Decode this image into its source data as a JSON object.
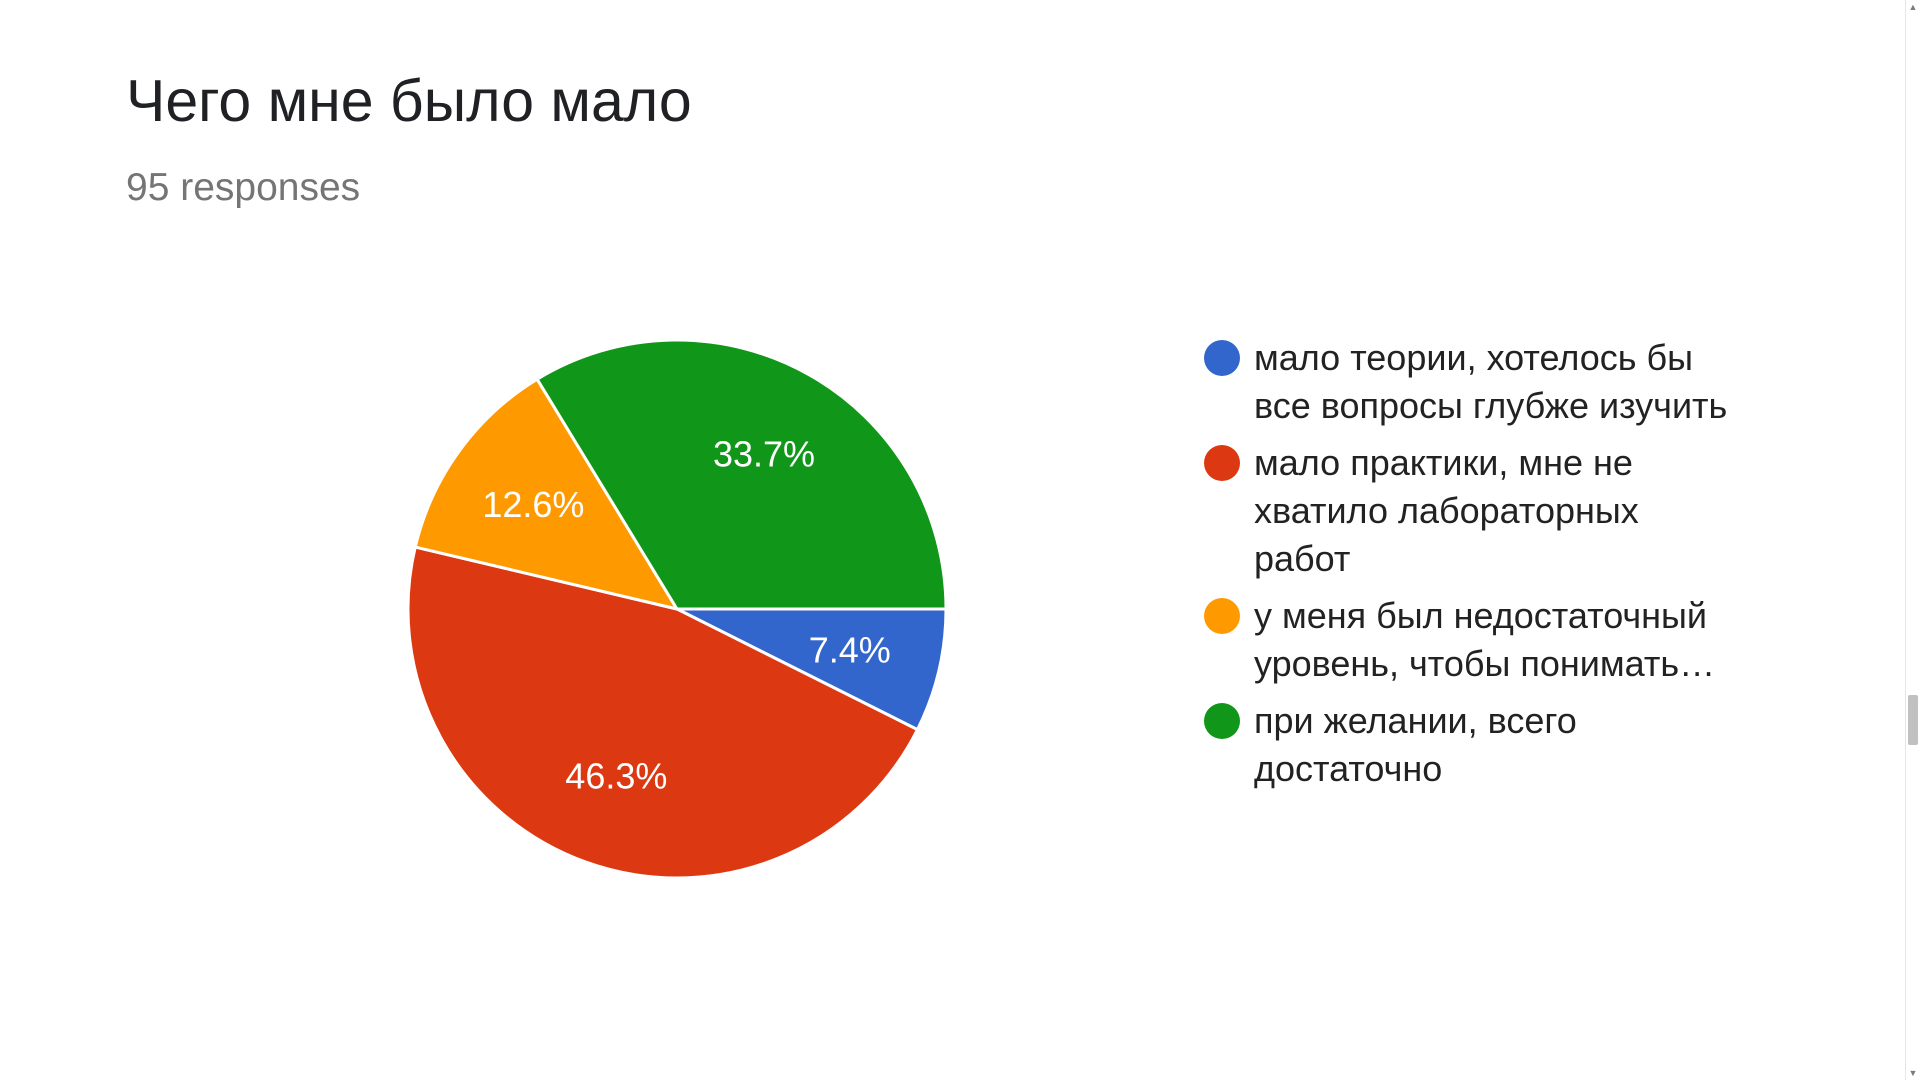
{
  "chart_data": {
    "type": "pie",
    "title": "Чего мне было мало",
    "subtitle": "95 responses",
    "slices": [
      {
        "label": "мало теории, хотелось бы все вопросы глубже изучить",
        "value": 7.4,
        "display": "7.4%",
        "color": "#3366cc"
      },
      {
        "label": "мало практики, мне не хватило лабораторных работ",
        "value": 46.3,
        "display": "46.3%",
        "color": "#dc3912"
      },
      {
        "label": "у меня был недостаточный уровень, чтобы понимать…",
        "value": 12.6,
        "display": "12.6%",
        "color": "#ff9900"
      },
      {
        "label": "при желании, всего достаточно",
        "value": 33.7,
        "display": "33.7%",
        "color": "#109618"
      }
    ],
    "legend_position": "right"
  },
  "icons": {
    "scroll_up": "scroll-up-arrow-icon",
    "scroll_down": "scroll-down-arrow-icon"
  }
}
